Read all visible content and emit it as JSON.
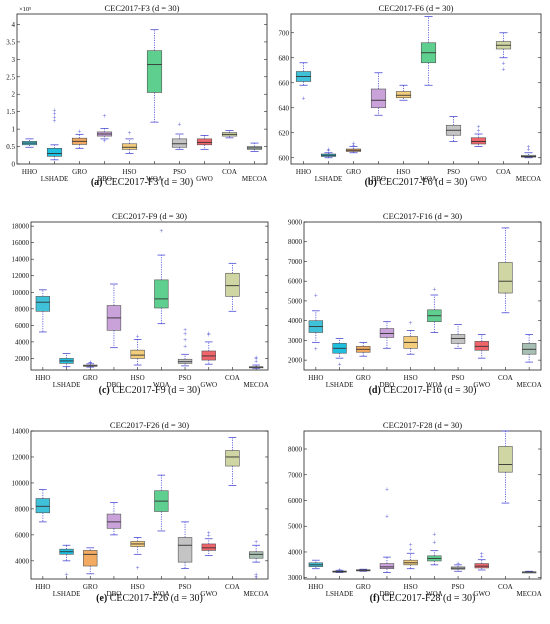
{
  "colors": {
    "HHO": "#3fc2d9",
    "LSHADE": "#1fbfe0",
    "GRO": "#f3aa62",
    "DBO": "#c8a2d8",
    "HSO": "#f4cd7c",
    "WOA": "#5fcf8f",
    "PSO": "#c4c4c4",
    "GWO": "#f0646c",
    "COA": "#cfd6a3",
    "MECOA": "#a8bfb3",
    "whisker": "#4b4bd6",
    "outlier": "#4b4bd6",
    "median": "#333333"
  },
  "chart_data": [
    {
      "type": "box",
      "title": "CEC2017-F3 (d = 30)",
      "caption_label": "(a)",
      "caption_text": " CEC2017-F3 (d = 30)",
      "exponent_label": "×10⁵",
      "categories": [
        "HHO",
        "LSHADE",
        "GRO",
        "DBO",
        "HSO",
        "WOA",
        "PSO",
        "GWO",
        "COA",
        "MECOA"
      ],
      "ylim": [
        0,
        4.3
      ],
      "yticks": [
        0,
        0.5,
        1,
        1.5,
        2,
        2.5,
        3,
        3.5,
        4
      ],
      "ytick_labels": [
        "0",
        "0.5",
        "1",
        "1.5",
        "2",
        "2.5",
        "3",
        "3.5",
        "4"
      ],
      "boxes": [
        {
          "min": 0.48,
          "q1": 0.55,
          "median": 0.6,
          "q3": 0.65,
          "max": 0.72,
          "outliers": []
        },
        {
          "min": 0.12,
          "q1": 0.22,
          "median": 0.3,
          "q3": 0.45,
          "max": 0.55,
          "outliers": [
            1.25,
            1.35,
            1.45,
            1.55
          ]
        },
        {
          "min": 0.45,
          "q1": 0.56,
          "median": 0.65,
          "q3": 0.74,
          "max": 0.85,
          "outliers": [
            0.95
          ]
        },
        {
          "min": 0.72,
          "q1": 0.8,
          "median": 0.86,
          "q3": 0.92,
          "max": 1.02,
          "outliers": [
            1.4,
            0.68
          ]
        },
        {
          "min": 0.3,
          "q1": 0.42,
          "median": 0.48,
          "q3": 0.58,
          "max": 0.72,
          "outliers": [
            0.9
          ]
        },
        {
          "min": 1.2,
          "q1": 2.05,
          "median": 2.85,
          "q3": 3.25,
          "max": 3.85,
          "outliers": []
        },
        {
          "min": 0.42,
          "q1": 0.48,
          "median": 0.58,
          "q3": 0.72,
          "max": 0.86,
          "outliers": [
            1.15
          ]
        },
        {
          "min": 0.42,
          "q1": 0.55,
          "median": 0.62,
          "q3": 0.72,
          "max": 0.82,
          "outliers": []
        },
        {
          "min": 0.75,
          "q1": 0.8,
          "median": 0.85,
          "q3": 0.9,
          "max": 0.96,
          "outliers": []
        },
        {
          "min": 0.36,
          "q1": 0.42,
          "median": 0.46,
          "q3": 0.5,
          "max": 0.6,
          "outliers": []
        }
      ]
    },
    {
      "type": "box",
      "title": "CEC2017-F6 (d = 30)",
      "caption_label": "(b)",
      "caption_text": " CEC2017-F6 (d = 30)",
      "exponent_label": "",
      "categories": [
        "HHO",
        "LSHADE",
        "GRO",
        "DBO",
        "HSO",
        "WOA",
        "PSO",
        "GWO",
        "COA",
        "MECOA"
      ],
      "ylim": [
        595,
        715
      ],
      "yticks": [
        600,
        620,
        640,
        660,
        680,
        700
      ],
      "ytick_labels": [
        "600",
        "620",
        "640",
        "660",
        "680",
        "700"
      ],
      "boxes": [
        {
          "min": 658,
          "q1": 661,
          "median": 665,
          "q3": 669,
          "max": 676,
          "outliers": [
            648
          ]
        },
        {
          "min": 600,
          "q1": 601,
          "median": 602,
          "q3": 603,
          "max": 604,
          "outliers": [
            606,
            607
          ]
        },
        {
          "min": 604,
          "q1": 605,
          "median": 606,
          "q3": 607,
          "max": 609,
          "outliers": [
            610,
            612
          ]
        },
        {
          "min": 634,
          "q1": 640,
          "median": 646,
          "q3": 655,
          "max": 668,
          "outliers": []
        },
        {
          "min": 646,
          "q1": 648,
          "median": 650,
          "q3": 653,
          "max": 658,
          "outliers": []
        },
        {
          "min": 658,
          "q1": 676,
          "median": 684,
          "q3": 692,
          "max": 713,
          "outliers": []
        },
        {
          "min": 613,
          "q1": 618,
          "median": 622,
          "q3": 626,
          "max": 633,
          "outliers": []
        },
        {
          "min": 609,
          "q1": 611,
          "median": 613,
          "q3": 616,
          "max": 619,
          "outliers": [
            622,
            625
          ]
        },
        {
          "min": 680,
          "q1": 687,
          "median": 690,
          "q3": 693,
          "max": 700,
          "outliers": [
            676,
            671
          ]
        },
        {
          "min": 600,
          "q1": 600.5,
          "median": 601,
          "q3": 602,
          "max": 604,
          "outliers": [
            607,
            609
          ]
        }
      ]
    },
    {
      "type": "box",
      "title": "CEC2017-F9 (d = 30)",
      "caption_label": "(c)",
      "caption_text": " CEC2017-F9 (d = 30)",
      "exponent_label": "",
      "categories": [
        "HHO",
        "LSHADE",
        "GRO",
        "DBO",
        "HSO",
        "WOA",
        "PSO",
        "GWO",
        "COA",
        "MECOA"
      ],
      "ylim": [
        600,
        18500
      ],
      "yticks": [
        2000,
        4000,
        6000,
        8000,
        10000,
        12000,
        14000,
        16000,
        18000
      ],
      "ytick_labels": [
        "2000",
        "4000",
        "6000",
        "8000",
        "10000",
        "12000",
        "14000",
        "16000",
        "18000"
      ],
      "boxes": [
        {
          "min": 5200,
          "q1": 7700,
          "median": 8800,
          "q3": 9500,
          "max": 10300,
          "outliers": []
        },
        {
          "min": 1000,
          "q1": 1400,
          "median": 1700,
          "q3": 2000,
          "max": 2600,
          "outliers": []
        },
        {
          "min": 950,
          "q1": 1050,
          "median": 1100,
          "q3": 1200,
          "max": 1350,
          "outliers": [
            1500,
            1600
          ]
        },
        {
          "min": 3300,
          "q1": 5400,
          "median": 6900,
          "q3": 8400,
          "max": 11000,
          "outliers": []
        },
        {
          "min": 1200,
          "q1": 2000,
          "median": 2400,
          "q3": 3000,
          "max": 4300,
          "outliers": [
            4700
          ]
        },
        {
          "min": 6200,
          "q1": 8100,
          "median": 9200,
          "q3": 11500,
          "max": 14500,
          "outliers": [
            17500
          ]
        },
        {
          "min": 1100,
          "q1": 1400,
          "median": 1600,
          "q3": 1900,
          "max": 2500,
          "outliers": [
            3500,
            4300,
            5000,
            5500
          ]
        },
        {
          "min": 1300,
          "q1": 1800,
          "median": 2300,
          "q3": 2900,
          "max": 4000,
          "outliers": [
            4900,
            5100
          ]
        },
        {
          "min": 7700,
          "q1": 9500,
          "median": 10800,
          "q3": 12300,
          "max": 13500,
          "outliers": []
        },
        {
          "min": 800,
          "q1": 900,
          "median": 950,
          "q3": 1000,
          "max": 1200,
          "outliers": [
            1700,
            2000,
            2200
          ]
        }
      ]
    },
    {
      "type": "box",
      "title": "CEC2017-F16 (d = 30)",
      "caption_label": "(d)",
      "caption_text": " CEC2017-F16 (d = 30)",
      "exponent_label": "",
      "categories": [
        "HHO",
        "LSHADE",
        "GRO",
        "DBO",
        "HSO",
        "WOA",
        "PSO",
        "GWO",
        "COA",
        "MECOA"
      ],
      "ylim": [
        1500,
        9000
      ],
      "yticks": [
        2000,
        3000,
        4000,
        5000,
        6000,
        7000,
        8000,
        9000
      ],
      "ytick_labels": [
        "2000",
        "3000",
        "4000",
        "5000",
        "6000",
        "7000",
        "8000",
        "9000"
      ],
      "boxes": [
        {
          "min": 2900,
          "q1": 3400,
          "median": 3700,
          "q3": 4000,
          "max": 4500,
          "outliers": [
            5300,
            2600
          ]
        },
        {
          "min": 2100,
          "q1": 2350,
          "median": 2600,
          "q3": 2850,
          "max": 3100,
          "outliers": [
            1800
          ]
        },
        {
          "min": 2200,
          "q1": 2400,
          "median": 2550,
          "q3": 2700,
          "max": 2900,
          "outliers": []
        },
        {
          "min": 2600,
          "q1": 3150,
          "median": 3350,
          "q3": 3600,
          "max": 3950,
          "outliers": []
        },
        {
          "min": 2300,
          "q1": 2600,
          "median": 2900,
          "q3": 3200,
          "max": 3500,
          "outliers": [
            3900
          ]
        },
        {
          "min": 3400,
          "q1": 3950,
          "median": 4250,
          "q3": 4550,
          "max": 5300,
          "outliers": [
            5600
          ]
        },
        {
          "min": 2600,
          "q1": 2850,
          "median": 3100,
          "q3": 3300,
          "max": 3800,
          "outliers": []
        },
        {
          "min": 2100,
          "q1": 2500,
          "median": 2700,
          "q3": 2950,
          "max": 3300,
          "outliers": []
        },
        {
          "min": 4400,
          "q1": 5400,
          "median": 6000,
          "q3": 6950,
          "max": 8700,
          "outliers": []
        },
        {
          "min": 1900,
          "q1": 2300,
          "median": 2550,
          "q3": 2850,
          "max": 3300,
          "outliers": []
        }
      ]
    },
    {
      "type": "box",
      "title": "CEC2017-F26 (d = 30)",
      "caption_label": "(e)",
      "caption_text": " CEC2017-F26 (d = 30)",
      "exponent_label": "",
      "categories": [
        "HHO",
        "LSHADE",
        "GRO",
        "DBO",
        "HSO",
        "WOA",
        "PSO",
        "GWO",
        "COA",
        "MECOA"
      ],
      "ylim": [
        2600,
        14000
      ],
      "yticks": [
        4000,
        6000,
        8000,
        10000,
        12000,
        14000
      ],
      "ytick_labels": [
        "4000",
        "6000",
        "8000",
        "10000",
        "12000",
        "14000"
      ],
      "boxes": [
        {
          "min": 7000,
          "q1": 7700,
          "median": 8200,
          "q3": 8800,
          "max": 9500,
          "outliers": []
        },
        {
          "min": 4000,
          "q1": 4500,
          "median": 4700,
          "q3": 4900,
          "max": 5200,
          "outliers": [
            3000
          ]
        },
        {
          "min": 3000,
          "q1": 3600,
          "median": 4500,
          "q3": 4800,
          "max": 5000,
          "outliers": []
        },
        {
          "min": 6000,
          "q1": 6500,
          "median": 7000,
          "q3": 7600,
          "max": 8500,
          "outliers": []
        },
        {
          "min": 4500,
          "q1": 5100,
          "median": 5300,
          "q3": 5500,
          "max": 5800,
          "outliers": [
            3500
          ]
        },
        {
          "min": 6300,
          "q1": 7800,
          "median": 8600,
          "q3": 9400,
          "max": 10600,
          "outliers": []
        },
        {
          "min": 3400,
          "q1": 3900,
          "median": 5200,
          "q3": 5800,
          "max": 7000,
          "outliers": []
        },
        {
          "min": 4400,
          "q1": 4800,
          "median": 5000,
          "q3": 5300,
          "max": 5700,
          "outliers": [
            6000,
            6200
          ]
        },
        {
          "min": 9800,
          "q1": 11300,
          "median": 12000,
          "q3": 12500,
          "max": 13500,
          "outliers": []
        },
        {
          "min": 3900,
          "q1": 4200,
          "median": 4500,
          "q3": 4700,
          "max": 5200,
          "outliers": [
            5500,
            3000,
            2800
          ]
        }
      ]
    },
    {
      "type": "box",
      "title": "CEC2017-F28 (d = 30)",
      "caption_label": "(f)",
      "caption_text": " CEC2017-F28 (d = 30)",
      "exponent_label": "",
      "categories": [
        "HHO",
        "LSHADE",
        "GRO",
        "DBO",
        "HSO",
        "WOA",
        "PSO",
        "GWO",
        "COA",
        "MECOA"
      ],
      "ylim": [
        2950,
        8700
      ],
      "yticks": [
        3000,
        4000,
        5000,
        6000,
        7000,
        8000
      ],
      "ytick_labels": [
        "3000",
        "4000",
        "5000",
        "6000",
        "7000",
        "8000"
      ],
      "boxes": [
        {
          "min": 3350,
          "q1": 3430,
          "median": 3500,
          "q3": 3580,
          "max": 3680,
          "outliers": []
        },
        {
          "min": 3200,
          "q1": 3220,
          "median": 3240,
          "q3": 3260,
          "max": 3290,
          "outliers": [
            3330
          ]
        },
        {
          "min": 3250,
          "q1": 3270,
          "median": 3290,
          "q3": 3310,
          "max": 3330,
          "outliers": []
        },
        {
          "min": 3200,
          "q1": 3350,
          "median": 3420,
          "q3": 3550,
          "max": 3800,
          "outliers": [
            5400,
            6450
          ]
        },
        {
          "min": 3350,
          "q1": 3500,
          "median": 3580,
          "q3": 3680,
          "max": 3950,
          "outliers": [
            4100,
            4300
          ]
        },
        {
          "min": 3500,
          "q1": 3650,
          "median": 3750,
          "q3": 3850,
          "max": 4050,
          "outliers": [
            4400,
            4700
          ]
        },
        {
          "min": 3250,
          "q1": 3330,
          "median": 3370,
          "q3": 3420,
          "max": 3500,
          "outliers": [
            3580
          ]
        },
        {
          "min": 3300,
          "q1": 3380,
          "median": 3450,
          "q3": 3550,
          "max": 3700,
          "outliers": [
            3850,
            3950
          ]
        },
        {
          "min": 5900,
          "q1": 7100,
          "median": 7400,
          "q3": 8100,
          "max": 8700,
          "outliers": []
        },
        {
          "min": 3200,
          "q1": 3210,
          "median": 3220,
          "q3": 3230,
          "max": 3250,
          "outliers": []
        }
      ]
    }
  ]
}
